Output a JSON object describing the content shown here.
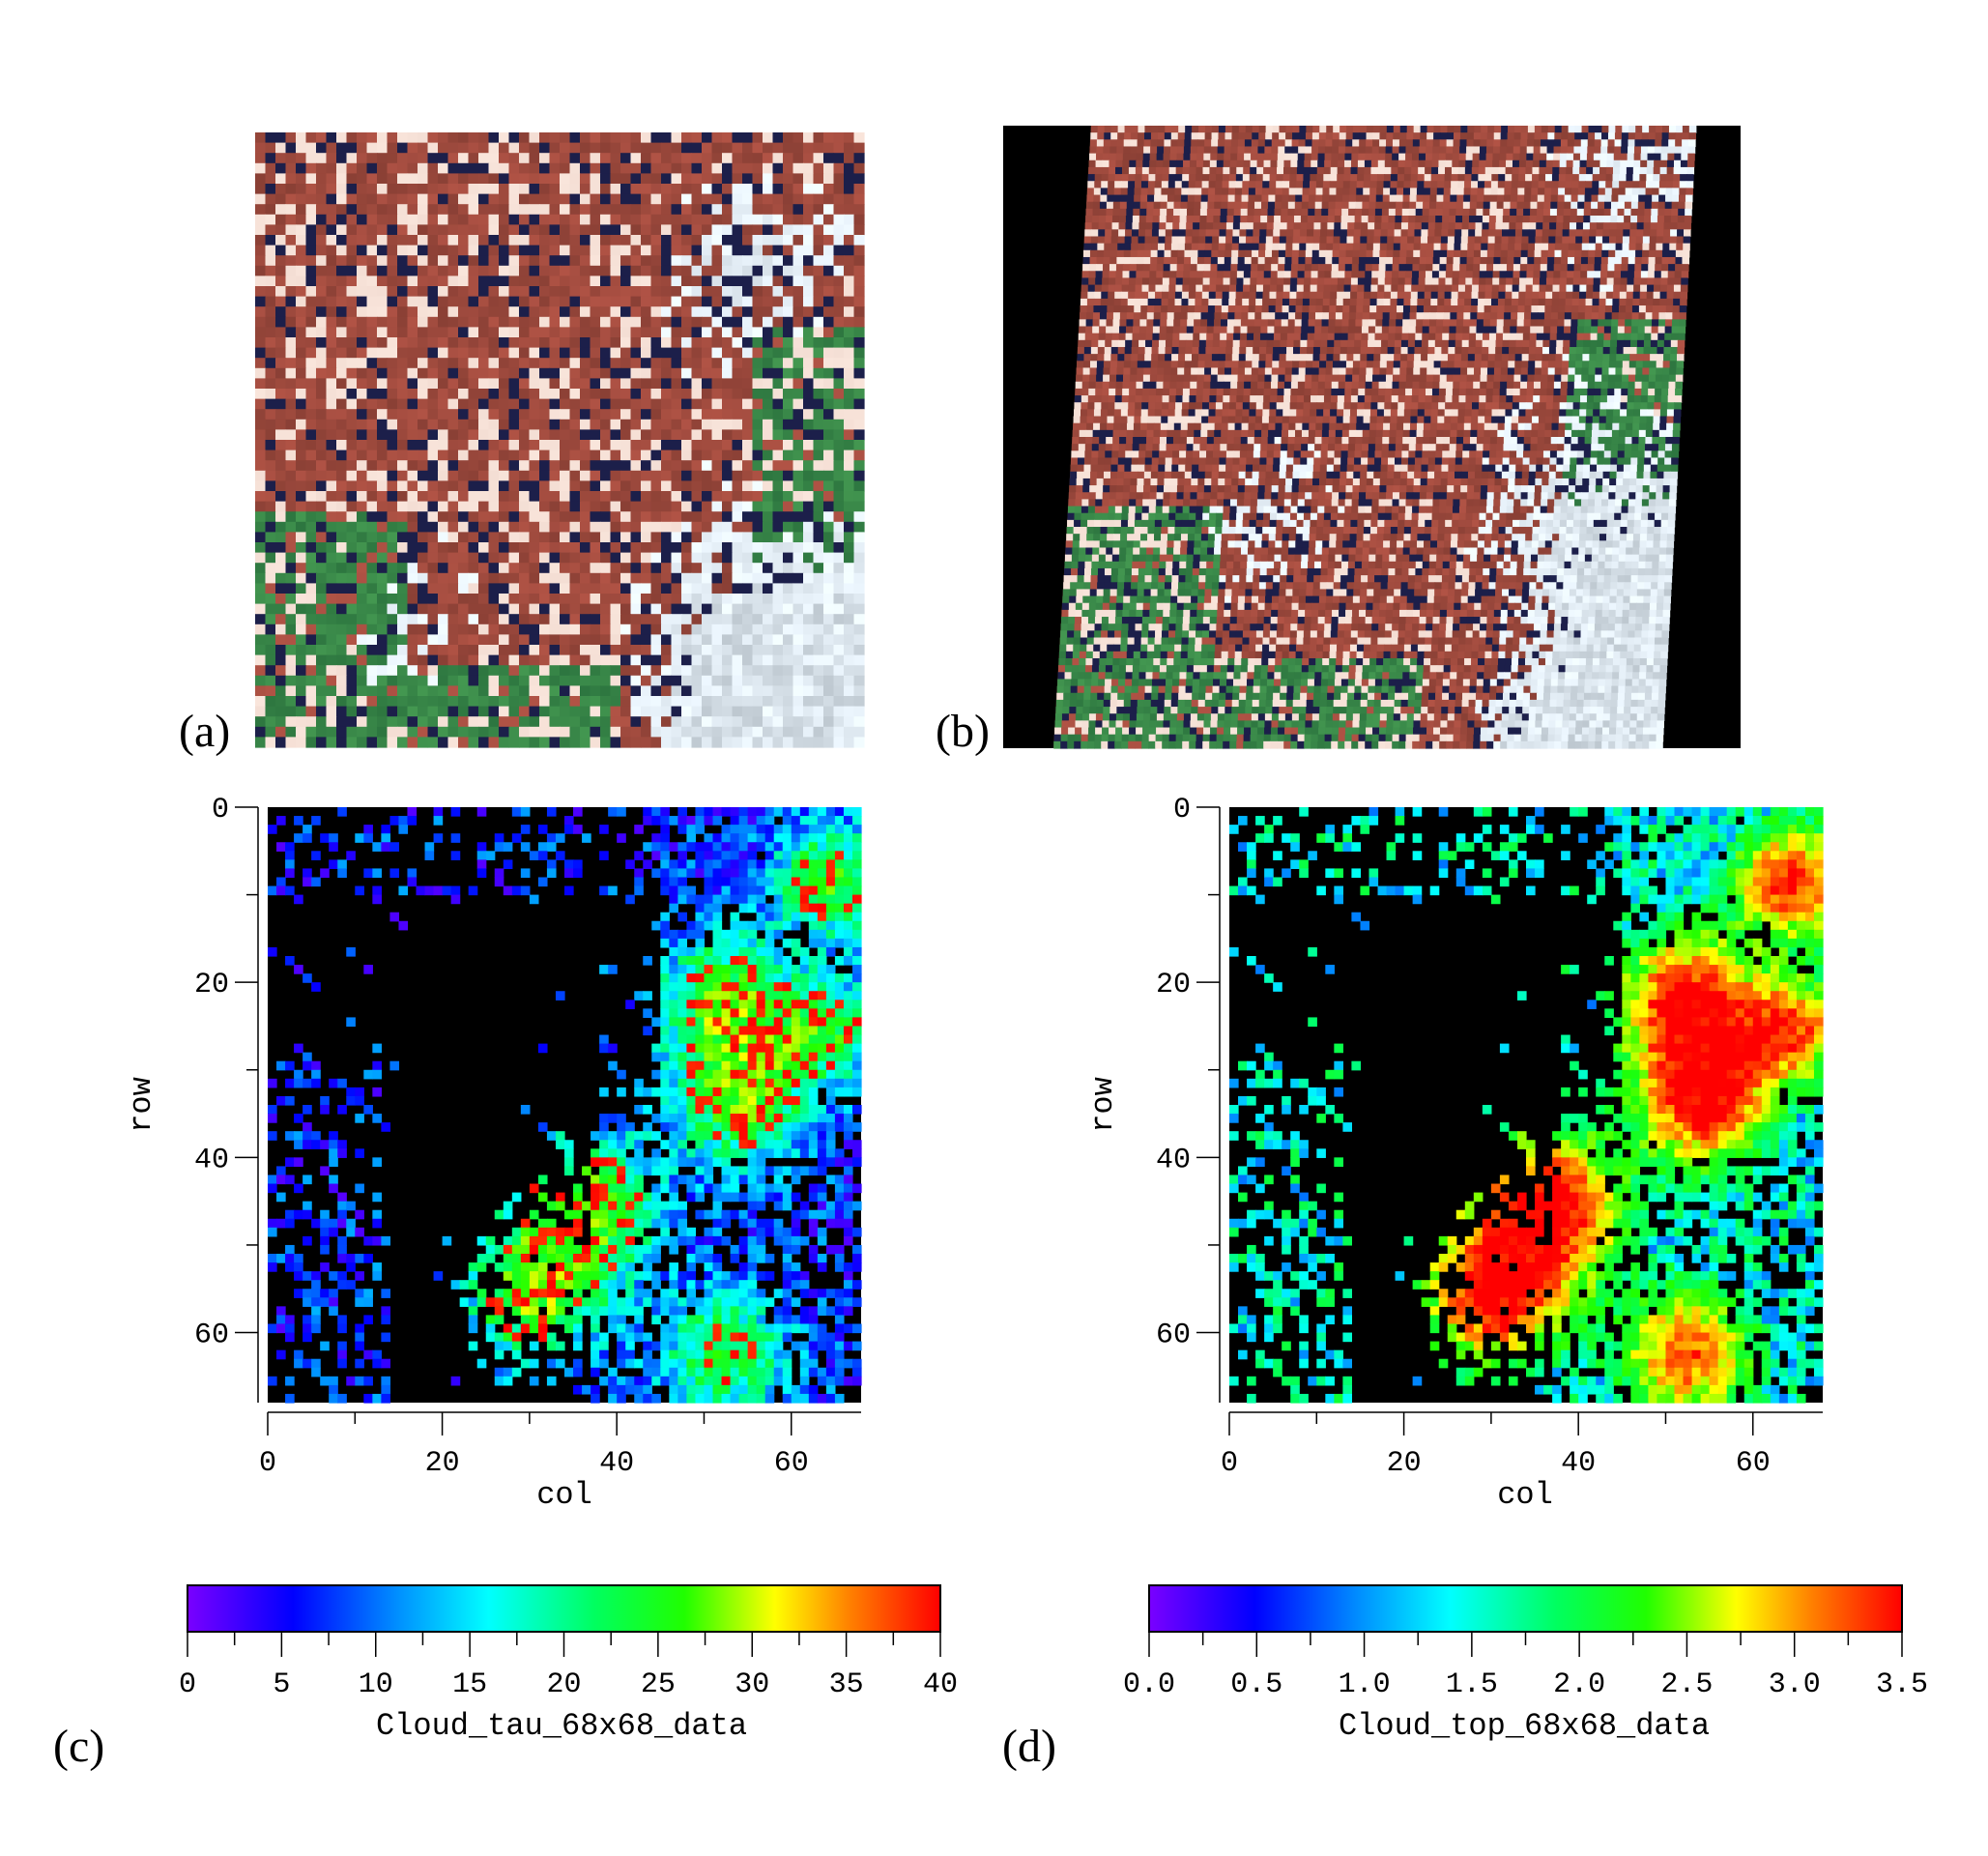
{
  "panel_labels": {
    "a": "(a)",
    "b": "(b)",
    "c": "(c)",
    "d": "(d)"
  },
  "chart_data": [
    {
      "id": "c",
      "type": "heatmap",
      "xlabel": "col",
      "ylabel": "row",
      "xticks": [
        "0",
        "20",
        "40",
        "60"
      ],
      "yticks": [
        "0",
        "20",
        "40",
        "60"
      ],
      "xlim": [
        0,
        68
      ],
      "ylim": [
        0,
        68
      ],
      "colorbar": {
        "label": "Cloud_tau_68x68_data",
        "range": [
          0,
          40
        ],
        "ticks": [
          "0",
          "5",
          "10",
          "15",
          "20",
          "25",
          "30",
          "35",
          "40"
        ],
        "colors": [
          "#7a00ff",
          "#0000ff",
          "#00c8ff",
          "#00ffd0",
          "#00ff00",
          "#ffff00",
          "#ff8000",
          "#ff0000"
        ]
      }
    },
    {
      "id": "d",
      "type": "heatmap",
      "xlabel": "col",
      "ylabel": "row",
      "xticks": [
        "0",
        "20",
        "40",
        "60"
      ],
      "yticks": [
        "0",
        "20",
        "40",
        "60"
      ],
      "xlim": [
        0,
        68
      ],
      "ylim": [
        0,
        68
      ],
      "colorbar": {
        "label": "Cloud_top_68x68_data",
        "range": [
          0.0,
          3.5
        ],
        "ticks": [
          "0.0",
          "0.5",
          "1.0",
          "1.5",
          "2.0",
          "2.5",
          "3.0",
          "3.5"
        ],
        "colors": [
          "#7a00ff",
          "#0000ff",
          "#00c8ff",
          "#00ffd0",
          "#00ff00",
          "#ffff00",
          "#ff8000",
          "#ff0000"
        ]
      }
    }
  ]
}
